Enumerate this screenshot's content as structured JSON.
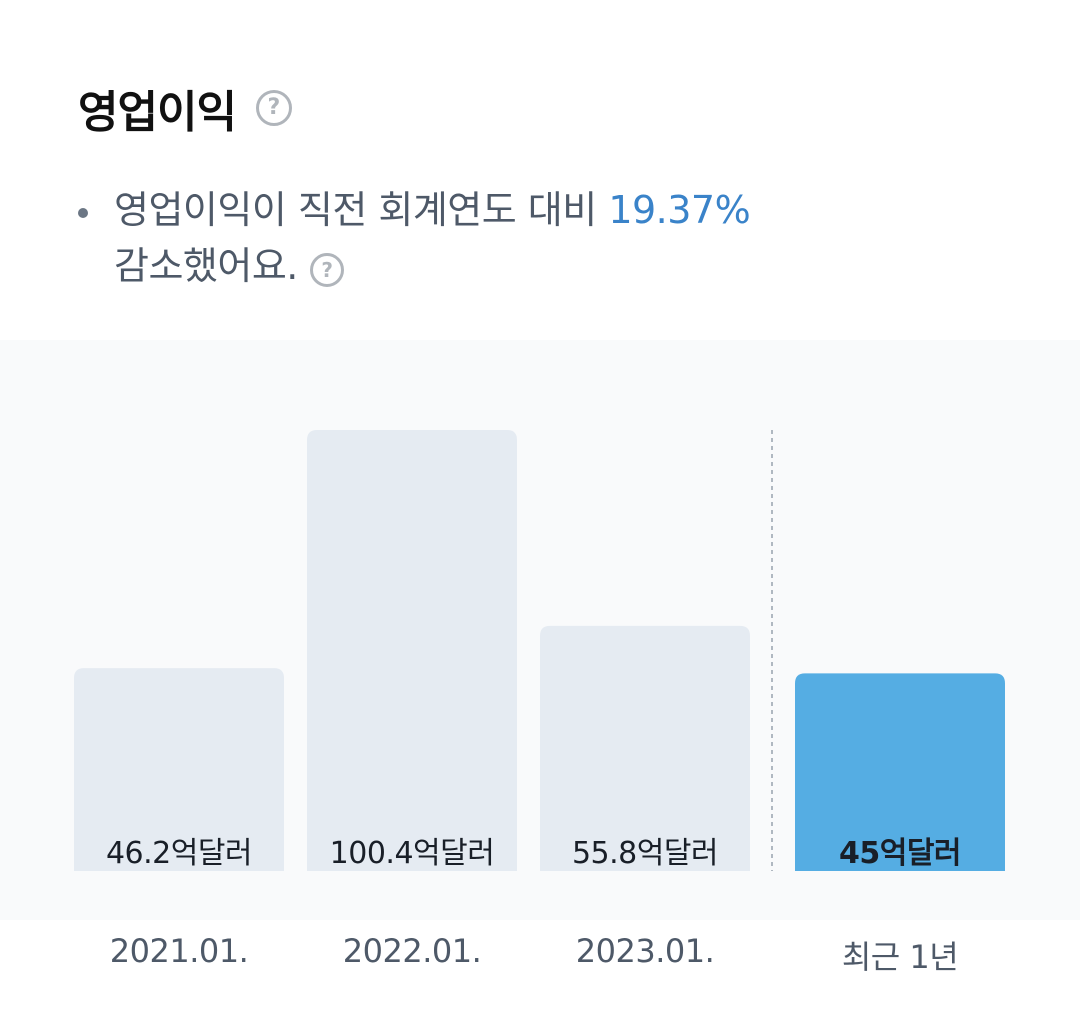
{
  "header": {
    "title": "영업이익",
    "help_icon": "question-circle-icon"
  },
  "summary": {
    "text_before": "영업이익이 직전 회계연도 대비 ",
    "percent": "19.37%",
    "text_after": "감소했어요.",
    "help_icon": "question-circle-icon"
  },
  "colors": {
    "bar_default": "#e5ebf2",
    "bar_highlight": "#55ade3",
    "panel_bg": "#f9fafb",
    "accent_text": "#3a83c9"
  },
  "chart_data": {
    "type": "bar",
    "categories": [
      "2021.01.",
      "2022.01.",
      "2023.01.",
      "최근 1년"
    ],
    "values": [
      46.2,
      100.4,
      55.8,
      45
    ],
    "value_labels": [
      "46.2억달러",
      "100.4억달러",
      "55.8억달러",
      "45억달러"
    ],
    "unit": "억달러",
    "highlight_index": 3,
    "separator_before_index": 3,
    "title": "영업이익",
    "xlabel": "",
    "ylabel": "",
    "ylim": [
      0,
      100.4
    ],
    "grid": false
  }
}
